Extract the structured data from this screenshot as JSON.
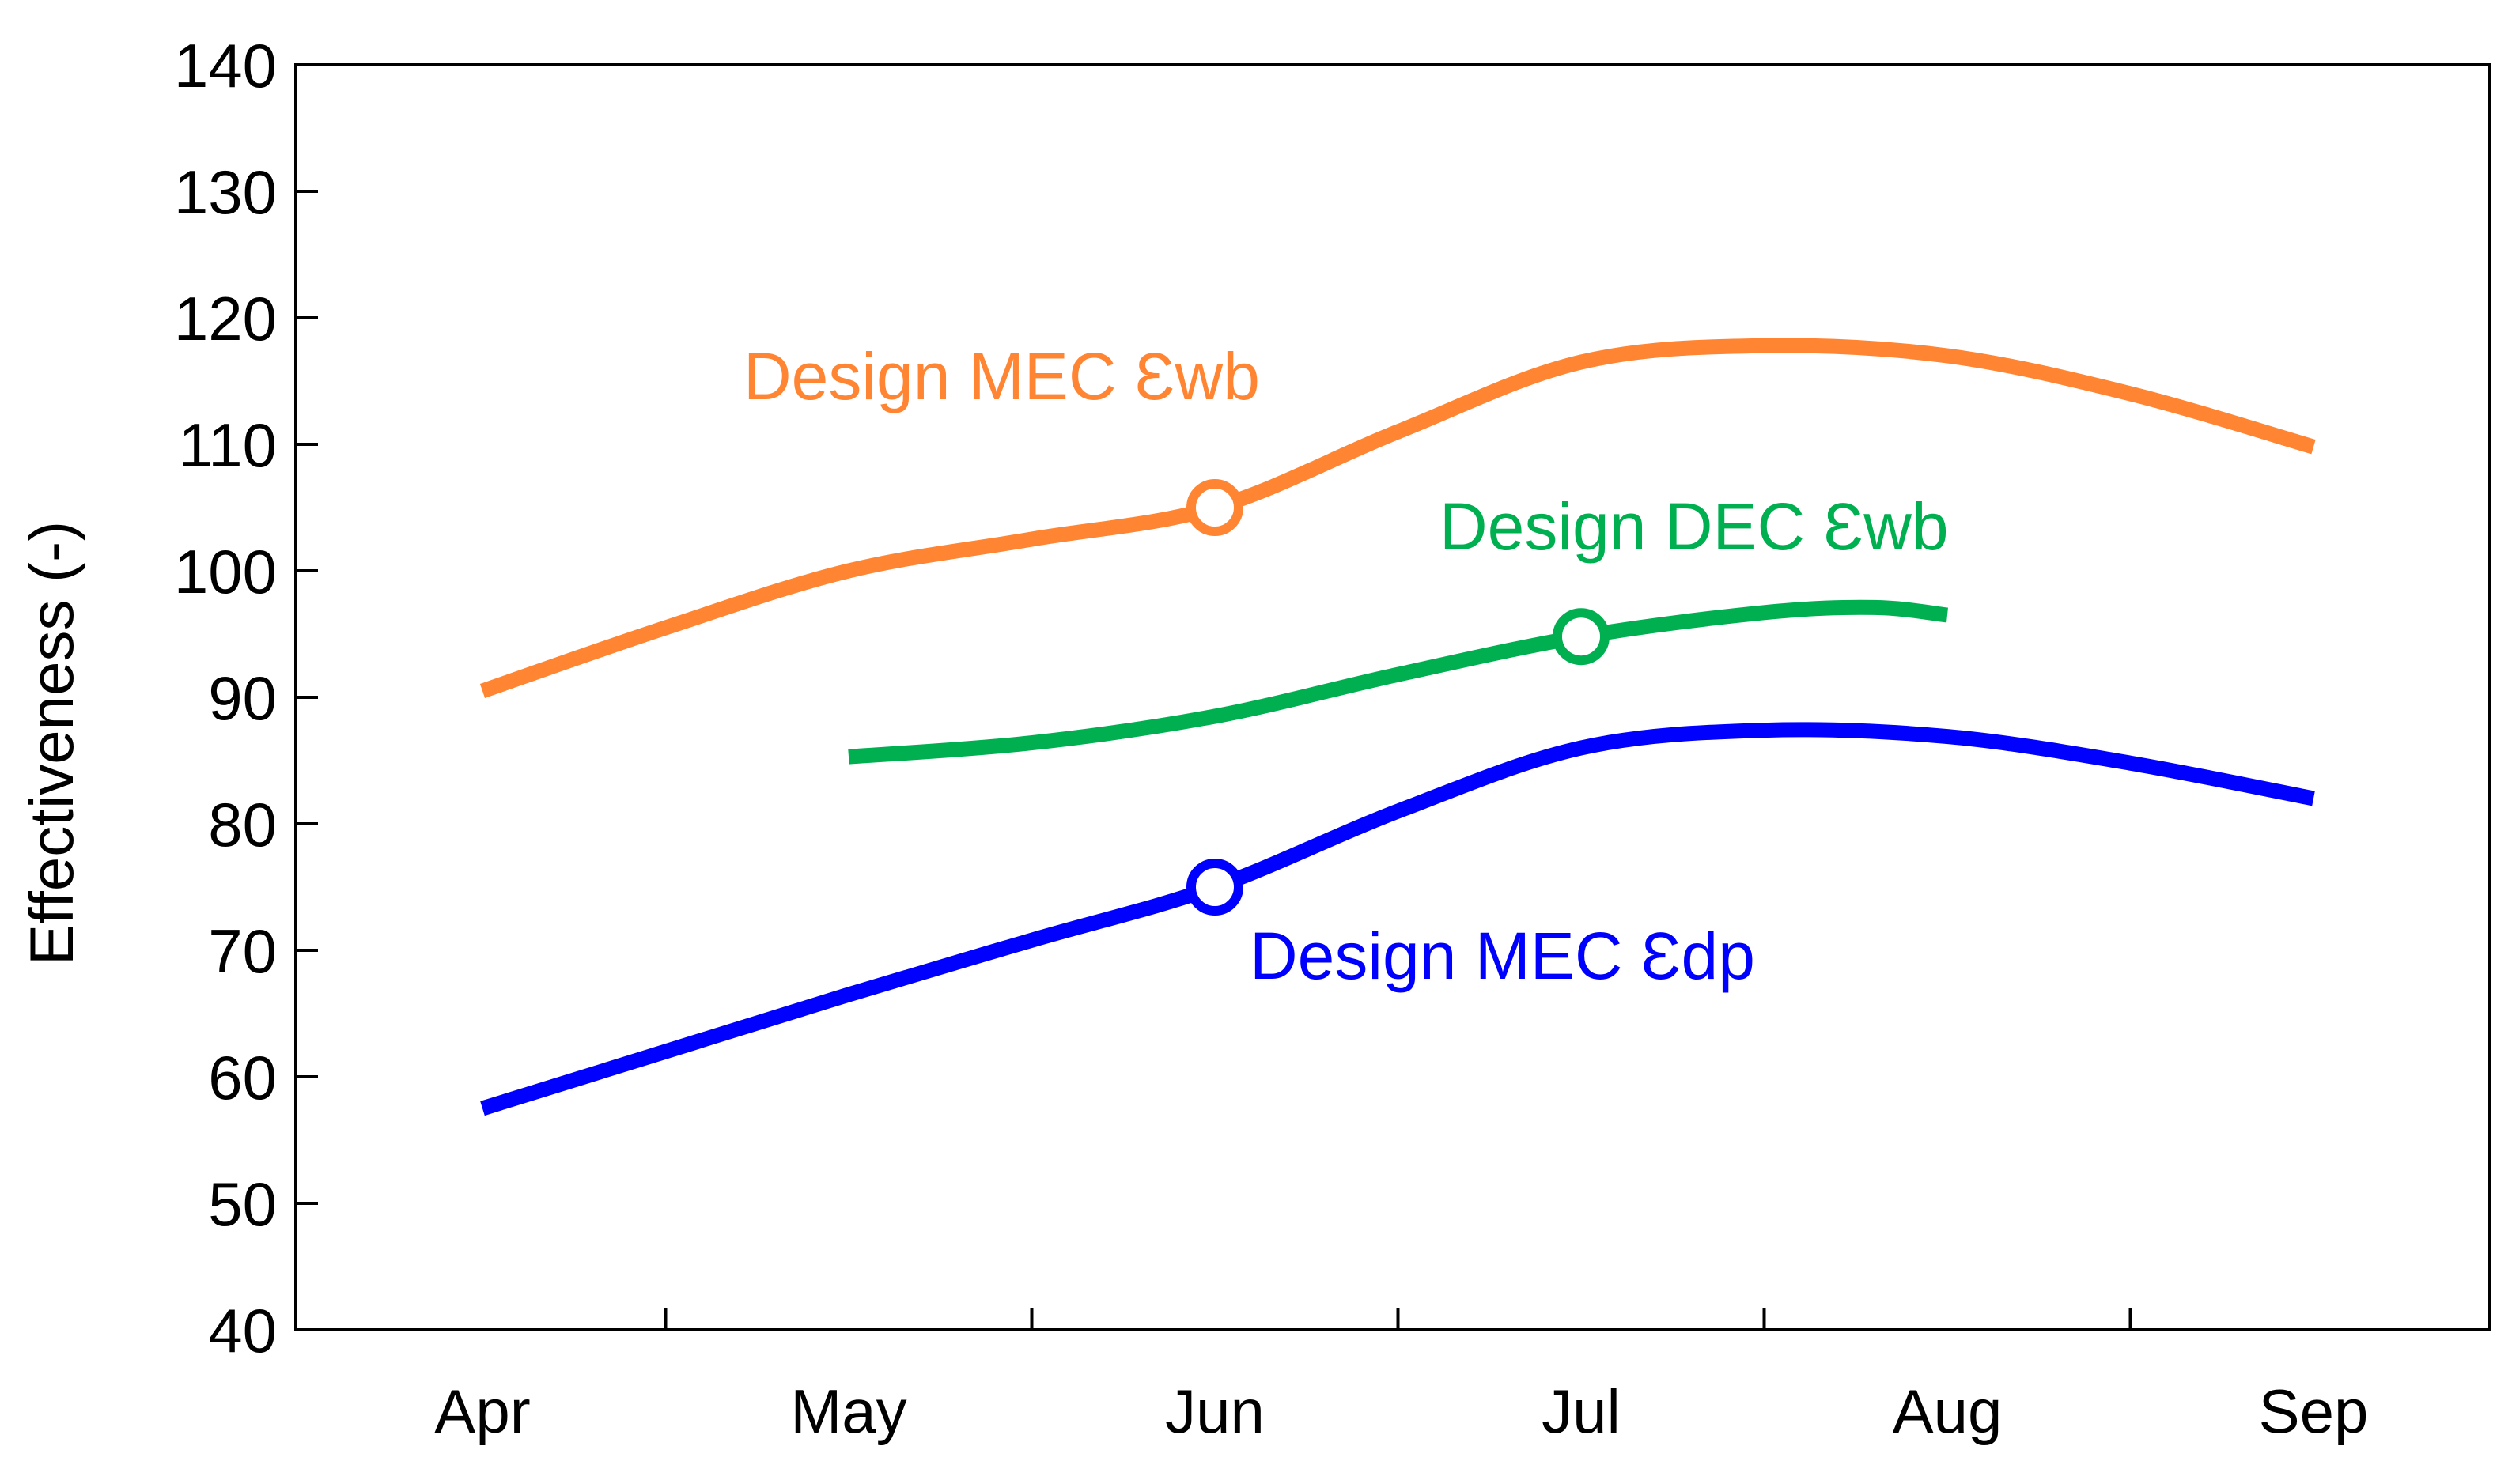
{
  "chart_data": {
    "type": "line",
    "title": "",
    "xlabel": "",
    "ylabel": "Effectiveness (-)",
    "ylim": [
      40,
      140
    ],
    "yticks": [
      40,
      50,
      60,
      70,
      80,
      90,
      100,
      110,
      120,
      130,
      140
    ],
    "categories": [
      "Apr",
      "May",
      "Jun",
      "Jul",
      "Aug",
      "Sep"
    ],
    "grid": false,
    "legend": "inline labels",
    "series": [
      {
        "name": "Design MEC Ɛwb",
        "label": "Design MEC Ɛwb",
        "color": "#FF8533",
        "x": [
          0,
          0.5,
          1,
          1.5,
          2,
          2.5,
          3,
          3.5,
          4,
          4.5,
          5
        ],
        "values": [
          90.5,
          95.5,
          100,
          102.5,
          105,
          111,
          116.5,
          117.8,
          117,
          114,
          109.8
        ],
        "design_point": {
          "x": 2,
          "value": 105
        }
      },
      {
        "name": "Design DEC Ɛwb",
        "label": "Design DEC Ɛwb",
        "color": "#00B050",
        "x": [
          1,
          1.5,
          2,
          2.5,
          3,
          3.5,
          3.8,
          4
        ],
        "values": [
          85.3,
          86.4,
          88.5,
          91.8,
          94.8,
          96.7,
          97.1,
          96.5
        ],
        "design_point": {
          "x": 3,
          "value": 94.8
        }
      },
      {
        "name": "Design MEC Ɛdp",
        "label": "Design MEC Ɛdp",
        "color": "#0000FF",
        "x": [
          0,
          0.5,
          1,
          1.5,
          2,
          2.5,
          3,
          3.5,
          4,
          4.5,
          5
        ],
        "values": [
          57.5,
          62,
          66.5,
          70.8,
          75,
          81,
          86,
          87.4,
          86.9,
          84.8,
          82
        ],
        "design_point": {
          "x": 2,
          "value": 75
        }
      }
    ]
  }
}
